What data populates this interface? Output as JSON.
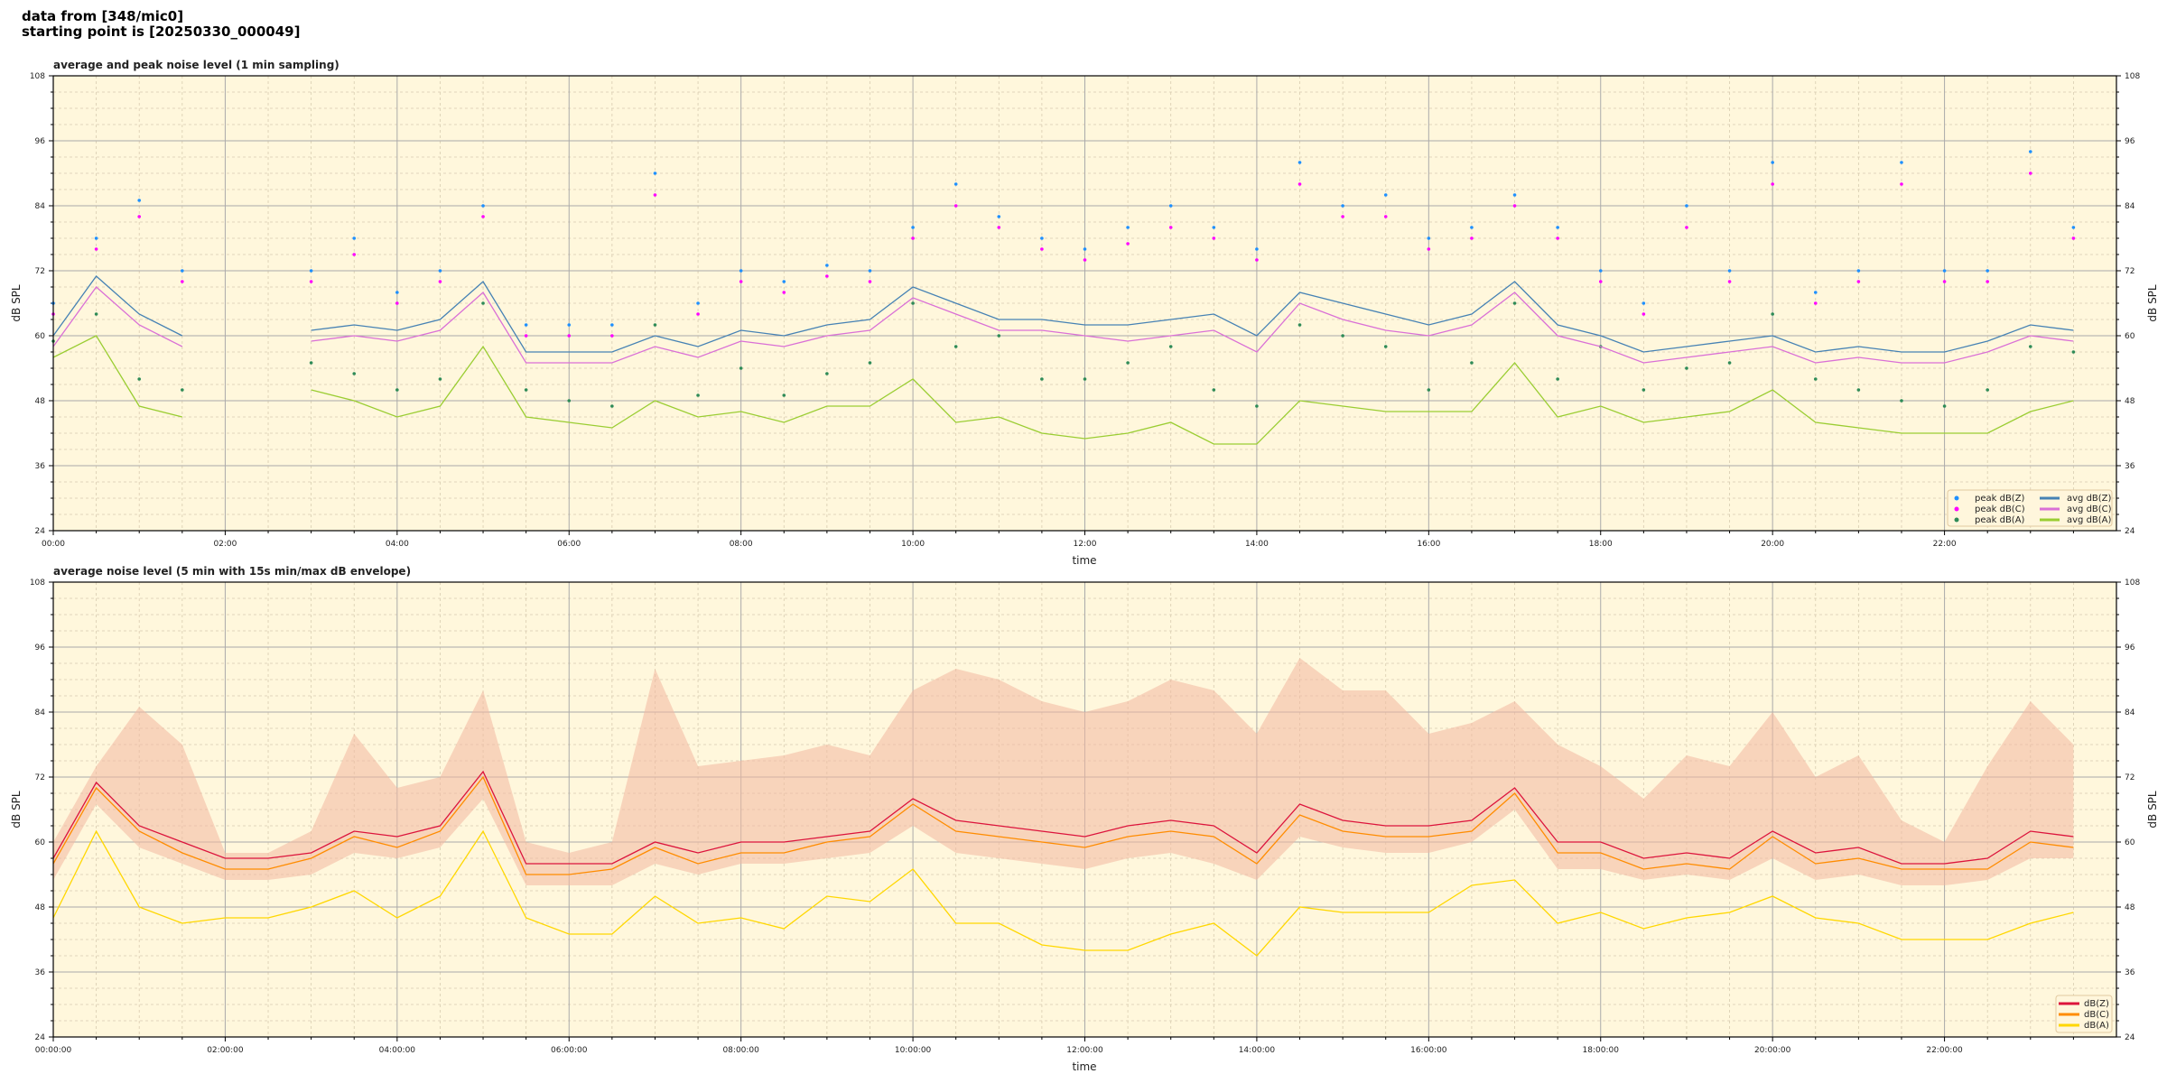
{
  "header": {
    "line1": "data from [348/mic0]",
    "line2": "starting point is [20250330_000049]"
  },
  "chart_data": [
    {
      "type": "line",
      "title": "average and peak noise level (1 min sampling)",
      "xlabel": "time",
      "ylabel": "dB SPL",
      "ylim": [
        24,
        108
      ],
      "xlim_hours": [
        0,
        24
      ],
      "y_ticks": [
        24,
        36,
        48,
        60,
        72,
        84,
        96,
        108
      ],
      "x_ticks": [
        "00:00",
        "02:00",
        "04:00",
        "06:00",
        "08:00",
        "10:00",
        "12:00",
        "14:00",
        "16:00",
        "18:00",
        "20:00",
        "22:00"
      ],
      "grid": true,
      "legend": "bottom-right",
      "x_hours": [
        0,
        0.5,
        1,
        1.5,
        2,
        2.5,
        3,
        3.5,
        4,
        4.5,
        5,
        5.5,
        6,
        6.5,
        7,
        7.5,
        8,
        8.5,
        9,
        9.5,
        10,
        10.5,
        11,
        11.5,
        12,
        12.5,
        13,
        13.5,
        14,
        14.5,
        15,
        15.5,
        16,
        16.5,
        17,
        17.5,
        18,
        18.5,
        19,
        19.5,
        20,
        20.5,
        21,
        21.5,
        22,
        22.5,
        23,
        23.5
      ],
      "series": [
        {
          "name": "peak dB(Z)",
          "kind": "dots",
          "color": "#1e90ff",
          "values": [
            66,
            78,
            85,
            72,
            null,
            null,
            72,
            78,
            68,
            72,
            84,
            62,
            62,
            62,
            90,
            66,
            72,
            70,
            73,
            72,
            80,
            88,
            82,
            78,
            76,
            80,
            84,
            80,
            76,
            92,
            84,
            86,
            78,
            80,
            86,
            80,
            72,
            66,
            84,
            72,
            92,
            68,
            72,
            92,
            72,
            72,
            94,
            80
          ]
        },
        {
          "name": "peak dB(C)",
          "kind": "dots",
          "color": "#ff00ff",
          "values": [
            64,
            76,
            82,
            70,
            null,
            null,
            70,
            75,
            66,
            70,
            82,
            60,
            60,
            60,
            86,
            64,
            70,
            68,
            71,
            70,
            78,
            84,
            80,
            76,
            74,
            77,
            80,
            78,
            74,
            88,
            82,
            82,
            76,
            78,
            84,
            78,
            70,
            64,
            80,
            70,
            88,
            66,
            70,
            88,
            70,
            70,
            90,
            78
          ]
        },
        {
          "name": "peak dB(A)",
          "kind": "dots",
          "color": "#2e8b57",
          "values": [
            59,
            64,
            52,
            50,
            null,
            null,
            55,
            53,
            50,
            52,
            66,
            50,
            48,
            47,
            62,
            49,
            54,
            49,
            53,
            55,
            66,
            58,
            60,
            52,
            52,
            55,
            58,
            50,
            47,
            62,
            60,
            58,
            50,
            55,
            66,
            52,
            58,
            50,
            54,
            55,
            64,
            52,
            50,
            48,
            47,
            50,
            58,
            57
          ]
        },
        {
          "name": "avg dB(Z)",
          "kind": "line",
          "color": "#4682b4",
          "values": [
            60,
            71,
            64,
            60,
            null,
            null,
            61,
            62,
            61,
            63,
            70,
            57,
            57,
            57,
            60,
            58,
            61,
            60,
            62,
            63,
            69,
            66,
            63,
            63,
            62,
            62,
            63,
            64,
            60,
            68,
            66,
            64,
            62,
            64,
            70,
            62,
            60,
            57,
            58,
            59,
            60,
            57,
            58,
            57,
            57,
            59,
            62,
            61
          ]
        },
        {
          "name": "avg dB(C)",
          "kind": "line",
          "color": "#da70d6",
          "values": [
            58,
            69,
            62,
            58,
            null,
            null,
            59,
            60,
            59,
            61,
            68,
            55,
            55,
            55,
            58,
            56,
            59,
            58,
            60,
            61,
            67,
            64,
            61,
            61,
            60,
            59,
            60,
            61,
            57,
            66,
            63,
            61,
            60,
            62,
            68,
            60,
            58,
            55,
            56,
            57,
            58,
            55,
            56,
            55,
            55,
            57,
            60,
            59
          ]
        },
        {
          "name": "avg dB(A)",
          "kind": "line",
          "color": "#9acd32",
          "values": [
            56,
            60,
            47,
            45,
            null,
            null,
            50,
            48,
            45,
            47,
            58,
            45,
            44,
            43,
            48,
            45,
            46,
            44,
            47,
            47,
            52,
            44,
            45,
            42,
            41,
            42,
            44,
            40,
            40,
            48,
            47,
            46,
            46,
            46,
            55,
            45,
            47,
            44,
            45,
            46,
            50,
            44,
            43,
            42,
            42,
            42,
            46,
            48
          ]
        }
      ]
    },
    {
      "type": "line",
      "title": "average noise level (5 min with 15s min/max dB envelope)",
      "xlabel": "time",
      "ylabel": "dB SPL",
      "ylim": [
        24,
        108
      ],
      "xlim_hours": [
        0,
        24
      ],
      "y_ticks": [
        24,
        36,
        48,
        60,
        72,
        84,
        96,
        108
      ],
      "x_ticks": [
        "00:00:00",
        "02:00:00",
        "04:00:00",
        "06:00:00",
        "08:00:00",
        "10:00:00",
        "12:00:00",
        "14:00:00",
        "16:00:00",
        "18:00:00",
        "20:00:00",
        "22:00:00"
      ],
      "grid": true,
      "legend": "bottom-right",
      "x_hours": [
        0,
        0.5,
        1,
        1.5,
        2,
        2.5,
        3,
        3.5,
        4,
        4.5,
        5,
        5.5,
        6,
        6.5,
        7,
        7.5,
        8,
        8.5,
        9,
        9.5,
        10,
        10.5,
        11,
        11.5,
        12,
        12.5,
        13,
        13.5,
        14,
        14.5,
        15,
        15.5,
        16,
        16.5,
        17,
        17.5,
        18,
        18.5,
        19,
        19.5,
        20,
        20.5,
        21,
        21.5,
        22,
        22.5,
        23,
        23.5
      ],
      "envelope": {
        "color": "#f2b8a0",
        "max": [
          60,
          74,
          85,
          78,
          58,
          58,
          62,
          80,
          70,
          72,
          88,
          60,
          58,
          60,
          92,
          74,
          75,
          76,
          78,
          76,
          88,
          92,
          90,
          86,
          84,
          86,
          90,
          88,
          80,
          94,
          88,
          88,
          80,
          82,
          86,
          78,
          74,
          68,
          76,
          74,
          84,
          72,
          76,
          64,
          60,
          74,
          86,
          78
        ],
        "min": [
          53,
          67,
          59,
          56,
          53,
          53,
          54,
          58,
          57,
          59,
          68,
          52,
          52,
          52,
          56,
          54,
          56,
          56,
          57,
          58,
          63,
          58,
          57,
          56,
          55,
          57,
          58,
          56,
          53,
          61,
          59,
          58,
          58,
          60,
          66,
          55,
          55,
          53,
          54,
          53,
          57,
          53,
          54,
          52,
          52,
          53,
          57,
          57
        ]
      },
      "series": [
        {
          "name": "dB(Z)",
          "kind": "line",
          "color": "#dc143c",
          "values": [
            57,
            71,
            63,
            60,
            57,
            57,
            58,
            62,
            61,
            63,
            73,
            56,
            56,
            56,
            60,
            58,
            60,
            60,
            61,
            62,
            68,
            64,
            63,
            62,
            61,
            63,
            64,
            63,
            58,
            67,
            64,
            63,
            63,
            64,
            70,
            60,
            60,
            57,
            58,
            57,
            62,
            58,
            59,
            56,
            56,
            57,
            62,
            61
          ]
        },
        {
          "name": "dB(C)",
          "kind": "line",
          "color": "#ff8c00",
          "values": [
            56,
            70,
            62,
            58,
            55,
            55,
            57,
            61,
            59,
            62,
            72,
            54,
            54,
            55,
            59,
            56,
            58,
            58,
            60,
            61,
            67,
            62,
            61,
            60,
            59,
            61,
            62,
            61,
            56,
            65,
            62,
            61,
            61,
            62,
            69,
            58,
            58,
            55,
            56,
            55,
            61,
            56,
            57,
            55,
            55,
            55,
            60,
            59
          ]
        },
        {
          "name": "dB(A)",
          "kind": "line",
          "color": "#ffd700",
          "values": [
            46,
            62,
            48,
            45,
            46,
            46,
            48,
            51,
            46,
            50,
            62,
            46,
            43,
            43,
            50,
            45,
            46,
            44,
            50,
            49,
            55,
            45,
            45,
            41,
            40,
            40,
            43,
            45,
            39,
            48,
            47,
            47,
            47,
            52,
            53,
            45,
            47,
            44,
            46,
            47,
            50,
            46,
            45,
            42,
            42,
            42,
            45,
            47
          ]
        }
      ]
    }
  ]
}
